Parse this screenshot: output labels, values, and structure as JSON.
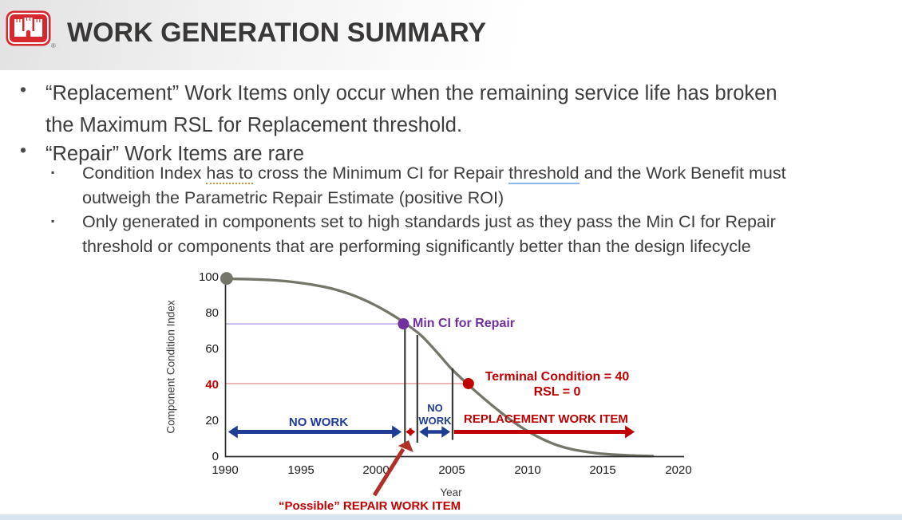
{
  "slide": {
    "title": "WORK GENERATION SUMMARY",
    "registered_mark": "®",
    "bullet_glyph": "•",
    "sub_bullet_glyph": "▪",
    "bullets": {
      "b1_line1": "“Replacement” Work Items only occur when the remaining service life has broken",
      "b1_line2": "the Maximum RSL for Replacement threshold.",
      "b2_line1": "“Repair” Work Items are rare",
      "s1_part1": "Condition Index ",
      "s1_underline1": "has to",
      "s1_part2": " cross the Minimum CI for Repair ",
      "s1_underline2": "threshold",
      "s1_part3": " and the Work Benefit must",
      "s1_line2": "outweigh the Parametric Repair Estimate (positive ROI)",
      "s2_line1": "Only generated in components set to high standards just as they pass the Min CI for Repair",
      "s2_line2": "threshold or components that are performing significantly better than the design lifecycle"
    }
  },
  "chart_data": {
    "type": "line",
    "title": "",
    "xlabel": "Year",
    "ylabel": "Component Condition Index",
    "xlim": [
      1990,
      2020.5
    ],
    "ylim": [
      0,
      100
    ],
    "grid": "off",
    "legend": "none",
    "x_ticks": [
      1990,
      1995,
      2000,
      2005,
      2010,
      2015,
      2020
    ],
    "y_ticks": [
      0,
      20,
      40,
      60,
      80,
      100
    ],
    "y_tick_highlight": 40,
    "series": [
      {
        "name": "component-condition-lifecycle",
        "color": "#75756a",
        "x": [
          1990,
          1991,
          1992,
          1993,
          1994,
          1995,
          1996,
          1997,
          1998,
          1999,
          2000,
          2001,
          2002,
          2003,
          2004,
          2005,
          2006,
          2007,
          2008,
          2009,
          2010,
          2011,
          2012,
          2013,
          2014,
          2015,
          2016,
          2017,
          2018.3
        ],
        "y": [
          99.3,
          99.2,
          99,
          98.6,
          98,
          97,
          95.7,
          94,
          91.5,
          88.3,
          84.3,
          79.5,
          74,
          67.5,
          58.5,
          49,
          41,
          33.5,
          26.5,
          20,
          14.5,
          10,
          6.5,
          4.2,
          2.8,
          1.8,
          1.2,
          0.8,
          0.5
        ]
      }
    ],
    "points": [
      {
        "name": "lifecycle-start",
        "year": 1990.1,
        "ci": 99.5,
        "color": "#75756a",
        "r": 8
      },
      {
        "name": "min-ci-for-repair",
        "year": 2001.8,
        "ci": 74.2,
        "color": "#7030a0",
        "r": 7
      },
      {
        "name": "terminal-condition",
        "year": 2006.1,
        "ci": 40.9,
        "color": "#c00000",
        "r": 7
      }
    ],
    "reference_lines": [
      {
        "name": "min-ci-level",
        "ci": 74.2,
        "to_year": 2001.8,
        "color": "#b49ae0"
      },
      {
        "name": "terminal-level",
        "ci": 40.9,
        "to_year": 2006.1,
        "color": "#e59999"
      }
    ],
    "vertical_lines": [
      {
        "year": 2001.9,
        "ci_top": 74.2,
        "ci_bottom": 8
      },
      {
        "year": 2002.72,
        "ci_top": 68,
        "ci_bottom": 8
      },
      {
        "year": 2005.05,
        "ci_top": 49.5,
        "ci_bottom": 9.5
      }
    ],
    "range_arrows": [
      {
        "name": "no-work-left-arrow",
        "x1": 1990.2,
        "x2": 2001.68,
        "ci": 14,
        "color": "#1e3c96",
        "double": true,
        "width": 5
      },
      {
        "name": "possible-repair-window-arrow",
        "x1": 2001.95,
        "x2": 2002.58,
        "ci": 14,
        "color": "#c00000",
        "double": true,
        "width": 3
      },
      {
        "name": "no-work-right-arrow",
        "x1": 2002.85,
        "x2": 2004.9,
        "ci": 14,
        "color": "#1e3c96",
        "double": true,
        "width": 4.5
      },
      {
        "name": "replacement-arrow",
        "x1": 2005.15,
        "x2": 2017.1,
        "ci": 14,
        "color": "#c00000",
        "double": false,
        "width": 5
      }
    ],
    "annotations": {
      "min_ci_label": "Min CI for Repair",
      "terminal_line1": "Terminal Condition = 40",
      "terminal_line2": "RSL = 0",
      "no_work_left": "NO WORK",
      "no_work_right_line1": "NO",
      "no_work_right_line2": "WORK",
      "replacement_label": "REPLACEMENT WORK ITEM",
      "possible_repair_label": "“Possible” REPAIR WORK ITEM"
    }
  }
}
